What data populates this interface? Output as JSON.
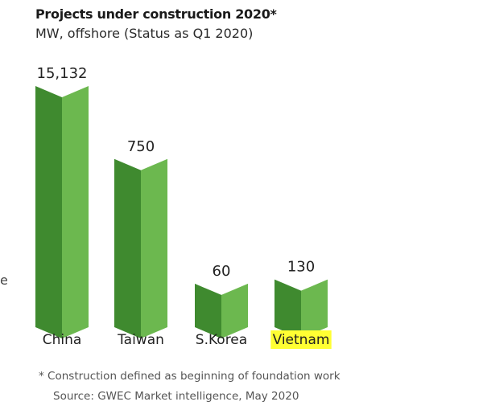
{
  "title": "Projects under construction 2020*",
  "subtitle": "MW, offshore (Status as Q1 2020)",
  "edge_mark": "e",
  "footnote": "* Construction defined as beginning of foundation work",
  "source": "Source: GWEC Market intelligence, May 2020",
  "colors": {
    "bar_dark": "#3f8a2f",
    "bar_light": "#6cb84f",
    "highlight": "#ffff33",
    "text": "#222222"
  },
  "chart_data": {
    "type": "bar",
    "categories": [
      "China",
      "Taiwan",
      "S.Korea",
      "Vietnam"
    ],
    "values": [
      15132,
      750,
      60,
      130
    ],
    "value_labels": [
      "15,132",
      "750",
      "60",
      "130"
    ],
    "highlighted_category": "Vietnam",
    "scale": "broken (non-linear bar heights)"
  }
}
